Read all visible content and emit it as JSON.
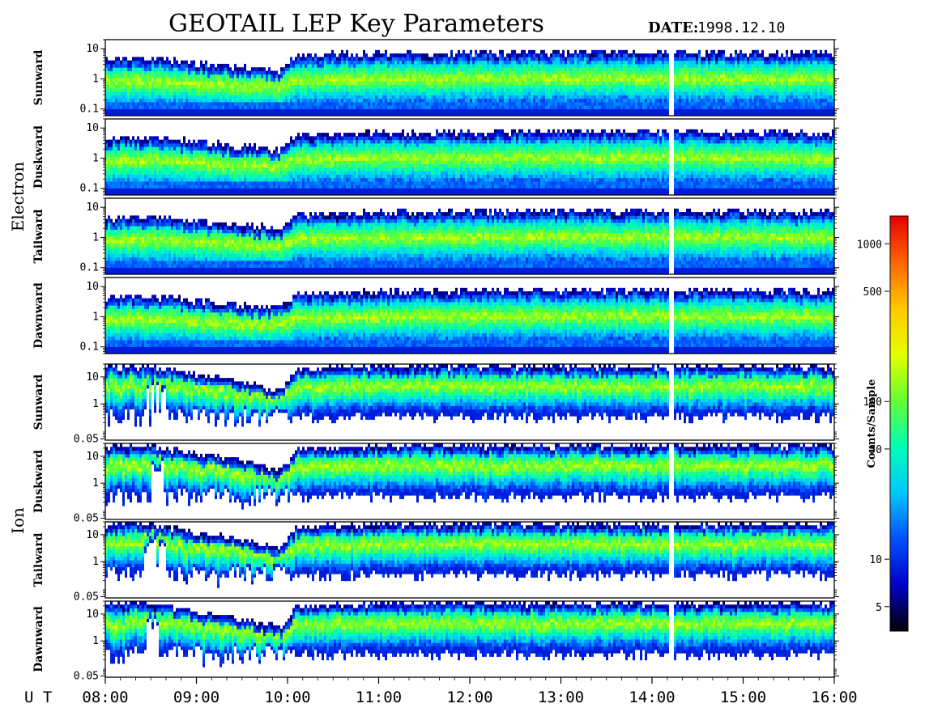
{
  "title": "GEOTAIL LEP Key Parameters",
  "date_label": "DATE:",
  "date_value": "1998.12.10",
  "colorbar": {
    "label": "Counts/Sample",
    "ticks": [
      {
        "label": "1000",
        "value": 1000
      },
      {
        "label": "500",
        "value": 500
      },
      {
        "label": "100",
        "value": 100
      },
      {
        "label": "50",
        "value": 50
      },
      {
        "label": "10",
        "value": 10
      },
      {
        "label": "5",
        "value": 5
      }
    ],
    "range": [
      3.5,
      1500
    ],
    "scale": "log",
    "colors": [
      "#000000",
      "#0000c8",
      "#0050ff",
      "#00c8ff",
      "#00ffb4",
      "#64ff32",
      "#e6ff00",
      "#ffc800",
      "#ff6400",
      "#e60000"
    ]
  },
  "x_axis": {
    "prefix": "U T",
    "ticks": [
      "08:00",
      "09:00",
      "10:00",
      "11:00",
      "12:00",
      "13:00",
      "14:00",
      "15:00",
      "16:00"
    ]
  },
  "groups": [
    {
      "name": "Electron",
      "panels": [
        "Sunward",
        "Duskward",
        "Tailward",
        "Dawnward"
      ],
      "yticks": [
        "10",
        "1",
        "0.1"
      ]
    },
    {
      "name": "Ion",
      "panels": [
        "Sunward",
        "Duskward",
        "Tailward",
        "Dawnward"
      ],
      "yticks": [
        "10",
        "1",
        "0.05"
      ]
    }
  ],
  "chart_data": {
    "type": "heatmap",
    "title": "GEOTAIL LEP Key Parameters",
    "x_range": [
      "08:00",
      "16:00"
    ],
    "x_unit": "UT",
    "y_scale": "log",
    "colorbar_label": "Counts/Sample",
    "colorbar_range": [
      3.5,
      1500
    ],
    "data_gap_ut": "14:12",
    "panels": [
      {
        "species": "Electron",
        "direction": "Sunward",
        "ylim": [
          0.06,
          20
        ]
      },
      {
        "species": "Electron",
        "direction": "Duskward",
        "ylim": [
          0.06,
          20
        ]
      },
      {
        "species": "Electron",
        "direction": "Tailward",
        "ylim": [
          0.06,
          20
        ]
      },
      {
        "species": "Electron",
        "direction": "Dawnward",
        "ylim": [
          0.06,
          20
        ]
      },
      {
        "species": "Ion",
        "direction": "Sunward",
        "ylim": [
          0.045,
          30
        ]
      },
      {
        "species": "Ion",
        "direction": "Duskward",
        "ylim": [
          0.045,
          30
        ]
      },
      {
        "species": "Ion",
        "direction": "Tailward",
        "ylim": [
          0.045,
          30
        ]
      },
      {
        "species": "Ion",
        "direction": "Dawnward",
        "ylim": [
          0.045,
          30
        ]
      }
    ],
    "electron_upper_edge": {
      "ut": [
        "08:00",
        "08:30",
        "09:00",
        "09:30",
        "09:55",
        "10:05",
        "11:00",
        "12:00",
        "13:00",
        "14:00",
        "15:00",
        "16:00"
      ],
      "energy": [
        4.5,
        5,
        3.5,
        2.5,
        2,
        6,
        7,
        7.5,
        8,
        8,
        7.5,
        7
      ]
    },
    "ion_upper_edge": {
      "ut": [
        "08:00",
        "08:30",
        "09:00",
        "09:30",
        "09:55",
        "10:05",
        "11:00",
        "12:00",
        "13:00",
        "14:00",
        "15:00",
        "16:00"
      ],
      "energy": [
        25,
        25,
        12,
        7,
        3,
        20,
        25,
        25,
        25,
        25,
        25,
        25
      ]
    }
  }
}
